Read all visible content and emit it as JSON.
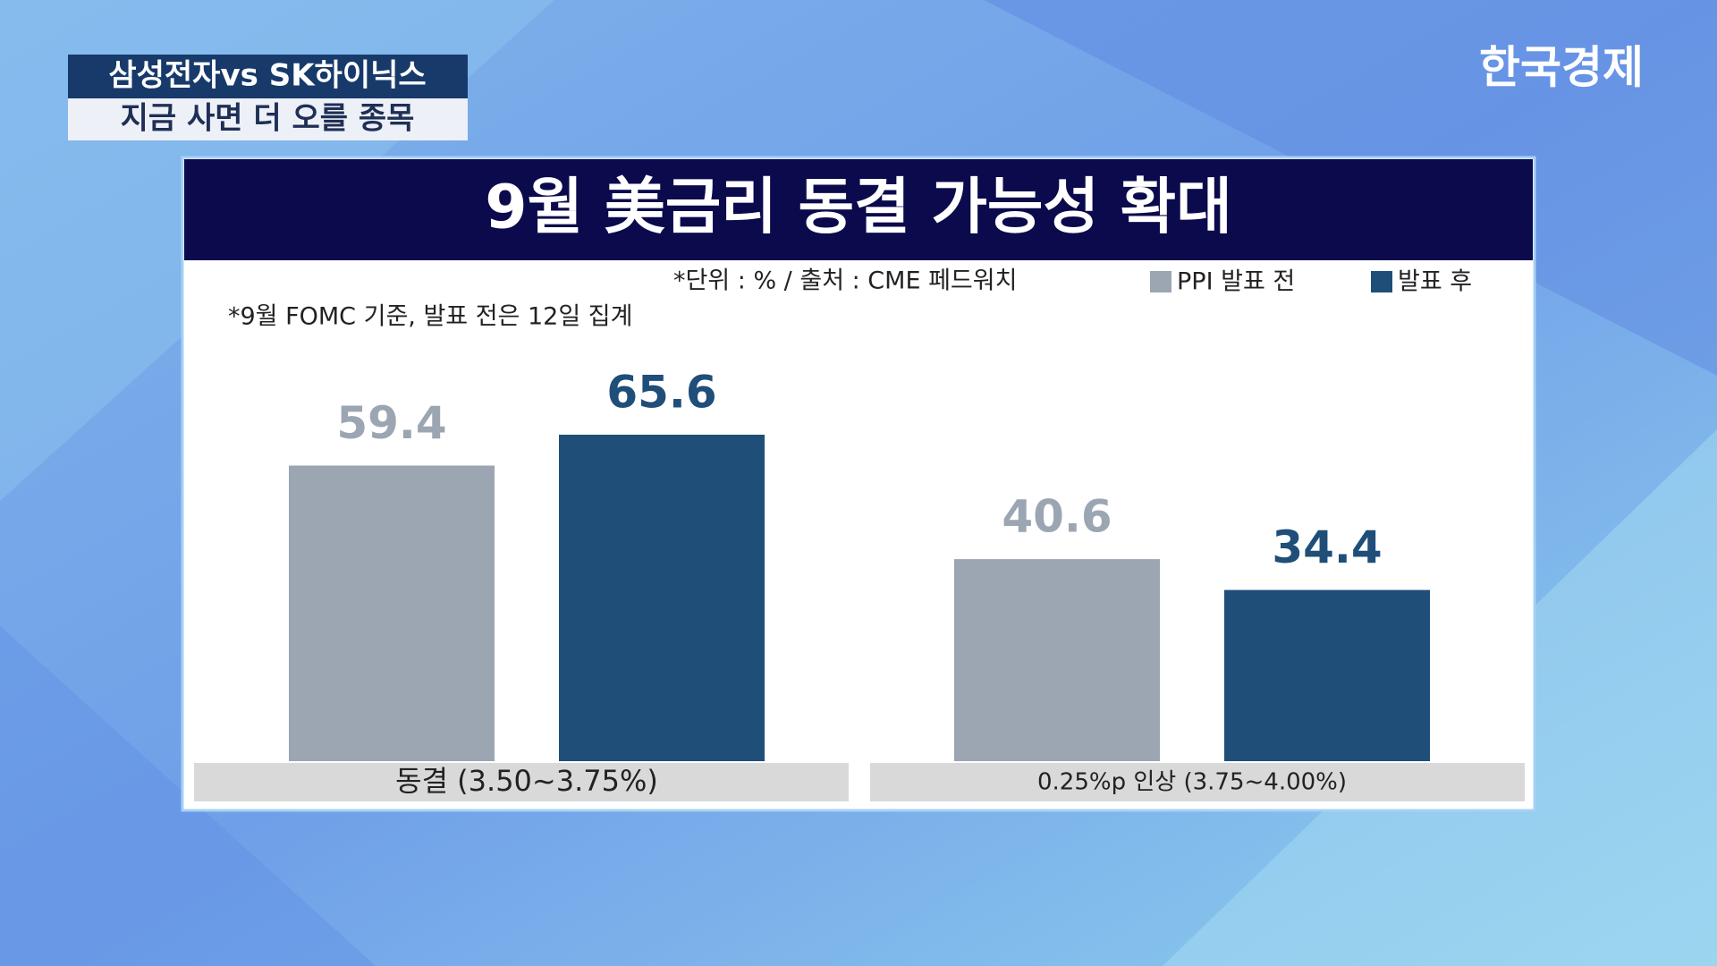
{
  "caption": {
    "line1": "삼성전자vs SK하이닉스",
    "line2": "지금 사면 더 오를 종목"
  },
  "logo": "한국경제",
  "chart_data": {
    "type": "bar",
    "title": "9월 美금리 동결 가능성 확대",
    "source_note": "*단위 : % / 출처 : CME 페드워치",
    "footnote": "*9월 FOMC 기준, 발표 전은 12일 집계",
    "categories": [
      "동결 (3.50~3.75%)",
      "0.25%p 인상 (3.75~4.00%)"
    ],
    "series": [
      {
        "name": "PPI 발표 전",
        "color": "#9ba6b2",
        "values": [
          59.4,
          40.6
        ]
      },
      {
        "name": "발표 후",
        "color": "#1f4e79",
        "values": [
          65.6,
          34.4
        ]
      }
    ],
    "legend": "top-right"
  }
}
